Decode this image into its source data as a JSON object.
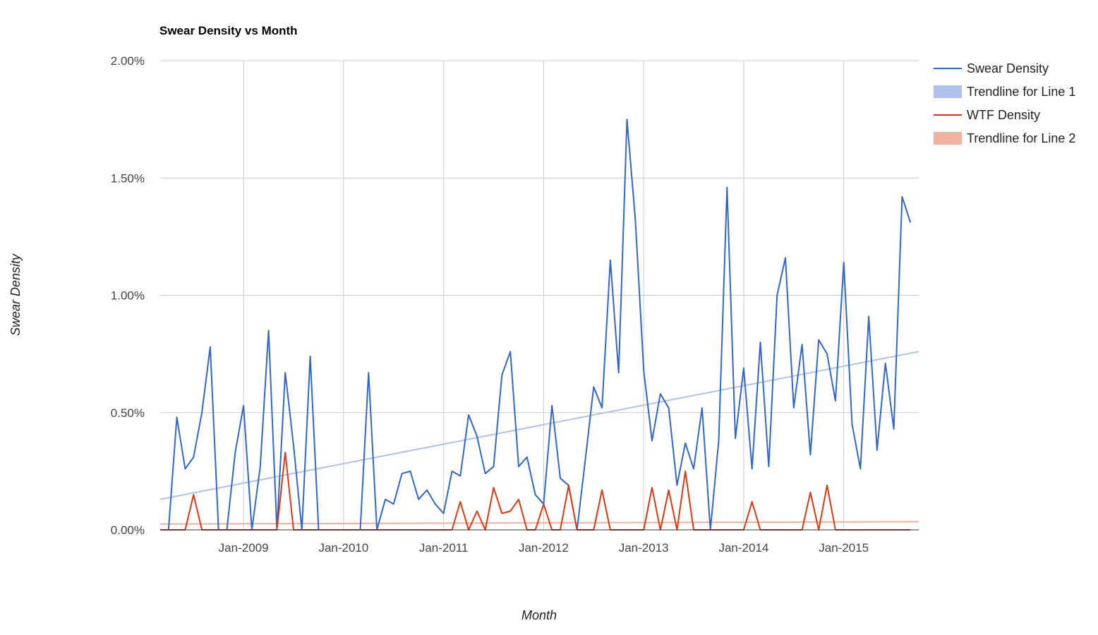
{
  "chart_data": {
    "type": "line",
    "title": "Swear Density vs Month",
    "xlabel": "Month",
    "ylabel": "Swear Density",
    "x_start": "2008-03",
    "x_end": "2015-10",
    "xlim": [
      "2008-03",
      "2015-10"
    ],
    "ylim": [
      0,
      0.02
    ],
    "y_ticks": [
      0,
      0.005,
      0.01,
      0.015,
      0.02
    ],
    "y_tick_labels": [
      "0.00%",
      "0.50%",
      "1.00%",
      "1.50%",
      "2.00%"
    ],
    "x_ticks": [
      "2009-01",
      "2010-01",
      "2011-01",
      "2012-01",
      "2013-01",
      "2014-01",
      "2015-01"
    ],
    "x_tick_labels": [
      "Jan-2009",
      "Jan-2010",
      "Jan-2011",
      "Jan-2012",
      "Jan-2013",
      "Jan-2014",
      "Jan-2015"
    ],
    "grid": true,
    "legend_position": "right",
    "series": [
      {
        "name": "Swear Density",
        "color": "#3366cc",
        "values": [
          0,
          0,
          0.0048,
          0.0026,
          0.0031,
          0.005,
          0.0078,
          0,
          0,
          0.0033,
          0.0053,
          0,
          0.0027,
          0.0085,
          0,
          0.0067,
          0.0036,
          0,
          0.0074,
          0,
          0,
          0,
          0,
          0,
          0,
          0.0067,
          0,
          0.0013,
          0.0011,
          0.0024,
          0.0025,
          0.0013,
          0.0017,
          0.0011,
          0.0007,
          0.0025,
          0.0023,
          0.0049,
          0.004,
          0.0024,
          0.0027,
          0.0066,
          0.0076,
          0.0027,
          0.0031,
          0.0015,
          0.0011,
          0.0053,
          0.0022,
          0.0019,
          0,
          0.003,
          0.0061,
          0.0052,
          0.0115,
          0.0067,
          0.0175,
          0.0132,
          0.0068,
          0.0038,
          0.0058,
          0.0052,
          0.0019,
          0.0037,
          0.0026,
          0.0052,
          0,
          0.0038,
          0.0146,
          0.0039,
          0.0069,
          0.0026,
          0.008,
          0.0027,
          0.01,
          0.0116,
          0.0052,
          0.0079,
          0.0032,
          0.0081,
          0.0075,
          0.0055,
          0.0114,
          0.0045,
          0.0026,
          0.0091,
          0.0034,
          0.0071,
          0.0043,
          0.0142,
          0.0131
        ]
      },
      {
        "name": "Trendline for Line 1",
        "color": "#aec2ec",
        "trend_start": 0.0013,
        "trend_end": 0.0076
      },
      {
        "name": "WTF Density",
        "color": "#dc3912",
        "values": [
          0,
          0,
          0,
          0,
          0.0015,
          0,
          0,
          0,
          0,
          0,
          0,
          0,
          0,
          0,
          0,
          0.0033,
          0,
          0,
          0,
          0,
          0,
          0,
          0,
          0,
          0,
          0,
          0,
          0,
          0,
          0,
          0,
          0,
          0,
          0,
          0,
          0,
          0.0012,
          0,
          0.0008,
          0,
          0.0018,
          0.0007,
          0.0008,
          0.0013,
          0,
          0,
          0.0011,
          0,
          0,
          0.0019,
          0,
          0,
          0,
          0.0017,
          0,
          0,
          0,
          0,
          0,
          0.0018,
          0,
          0.0017,
          0,
          0.0025,
          0,
          0,
          0,
          0,
          0,
          0,
          0,
          0.0012,
          0,
          0,
          0,
          0,
          0,
          0,
          0.0016,
          0,
          0.0019,
          0,
          0,
          0,
          0,
          0,
          0,
          0,
          0,
          0,
          0
        ]
      },
      {
        "name": "Trendline for Line 2",
        "color": "#f2b0a0",
        "trend_start": 0.00025,
        "trend_end": 0.00035
      }
    ]
  }
}
